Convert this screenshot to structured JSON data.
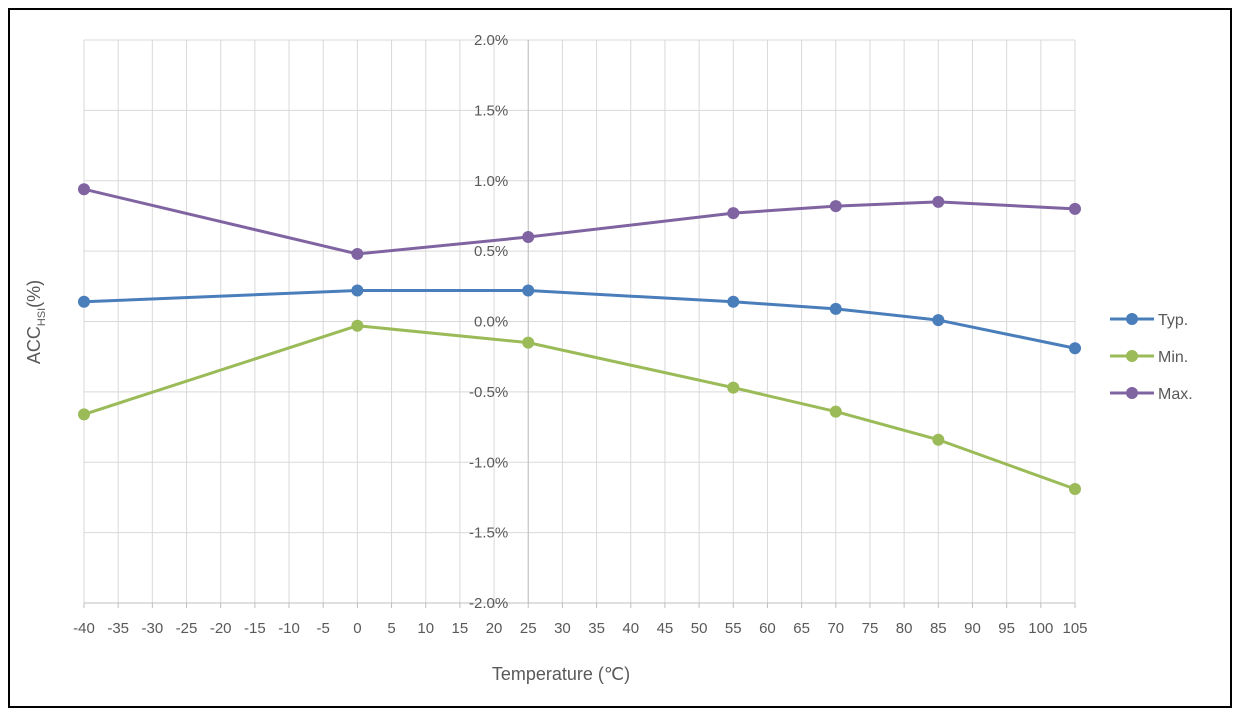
{
  "chart_data": {
    "type": "line",
    "x": [
      -40,
      0,
      25,
      55,
      70,
      85,
      105
    ],
    "series": [
      {
        "name": "Typ.",
        "color": "#4a7ebb",
        "values": [
          0.14,
          0.22,
          0.22,
          0.14,
          0.09,
          0.01,
          -0.19
        ]
      },
      {
        "name": "Min.",
        "color": "#9bbb59",
        "values": [
          -0.66,
          -0.03,
          -0.15,
          -0.47,
          -0.64,
          -0.84,
          -1.19
        ]
      },
      {
        "name": "Max.",
        "color": "#8064a2",
        "values": [
          0.94,
          0.48,
          0.6,
          0.77,
          0.82,
          0.85,
          0.8
        ]
      }
    ],
    "xlim": [
      -40,
      105
    ],
    "ylim": [
      -2.0,
      2.0
    ],
    "x_ticks": [
      -40,
      -35,
      -30,
      -25,
      -20,
      -15,
      -10,
      -5,
      0,
      5,
      10,
      15,
      20,
      25,
      30,
      35,
      40,
      45,
      50,
      55,
      60,
      65,
      70,
      75,
      80,
      85,
      90,
      95,
      100,
      105
    ],
    "x_tick_labels": [
      "-40",
      "-35",
      "-30",
      "-25",
      "-20",
      "-15",
      "-10",
      "-5",
      "0",
      "5",
      "10",
      "15",
      "20",
      "25",
      "30",
      "35",
      "40",
      "45",
      "50",
      "55",
      "60",
      "65",
      "70",
      "75",
      "80",
      "85",
      "90",
      "95",
      "100",
      "105"
    ],
    "y_ticks": [
      2.0,
      1.5,
      1.0,
      0.5,
      0.0,
      -0.5,
      -1.0,
      -1.5,
      -2.0
    ],
    "y_tick_labels": [
      "2.0%",
      "1.5%",
      "1.0%",
      "0.5%",
      "0.0%",
      "-0.5%",
      "-1.0%",
      "-1.5%",
      "-2.0%"
    ],
    "xlabel": "Temperature (℃)",
    "ylabel": {
      "main": "ACC",
      "subscript": "HSI",
      "suffix": "(%)"
    },
    "grid": true,
    "legend": "right",
    "grid_color": "#d9d9d9",
    "axis_color": "#bfbfbf"
  }
}
